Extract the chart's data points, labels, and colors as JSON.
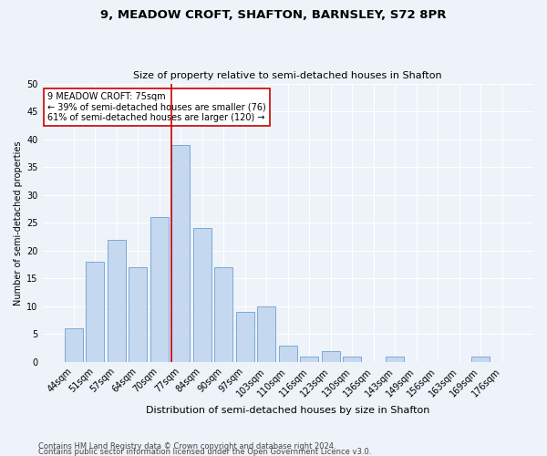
{
  "title": "9, MEADOW CROFT, SHAFTON, BARNSLEY, S72 8PR",
  "subtitle": "Size of property relative to semi-detached houses in Shafton",
  "xlabel": "Distribution of semi-detached houses by size in Shafton",
  "ylabel": "Number of semi-detached properties",
  "categories": [
    "44sqm",
    "51sqm",
    "57sqm",
    "64sqm",
    "70sqm",
    "77sqm",
    "84sqm",
    "90sqm",
    "97sqm",
    "103sqm",
    "110sqm",
    "116sqm",
    "123sqm",
    "130sqm",
    "136sqm",
    "143sqm",
    "149sqm",
    "156sqm",
    "163sqm",
    "169sqm",
    "176sqm"
  ],
  "values": [
    6,
    18,
    22,
    17,
    26,
    39,
    24,
    17,
    9,
    10,
    3,
    1,
    2,
    1,
    0,
    1,
    0,
    0,
    0,
    1,
    0
  ],
  "bar_color": "#c5d8f0",
  "bar_edge_color": "#6aa0d4",
  "ref_line_color": "#cc0000",
  "annotation_box_edge_color": "#cc0000",
  "ylim": [
    0,
    50
  ],
  "yticks": [
    0,
    5,
    10,
    15,
    20,
    25,
    30,
    35,
    40,
    45,
    50
  ],
  "reference_label": "9 MEADOW CROFT: 75sqm",
  "smaller_pct": "39% of semi-detached houses are smaller (76)",
  "larger_pct": "61% of semi-detached houses are larger (120)",
  "footnote1": "Contains HM Land Registry data © Crown copyright and database right 2024.",
  "footnote2": "Contains public sector information licensed under the Open Government Licence v3.0.",
  "bg_color": "#eef2f9",
  "grid_color": "#ffffff",
  "ref_line_bar_index": 5
}
